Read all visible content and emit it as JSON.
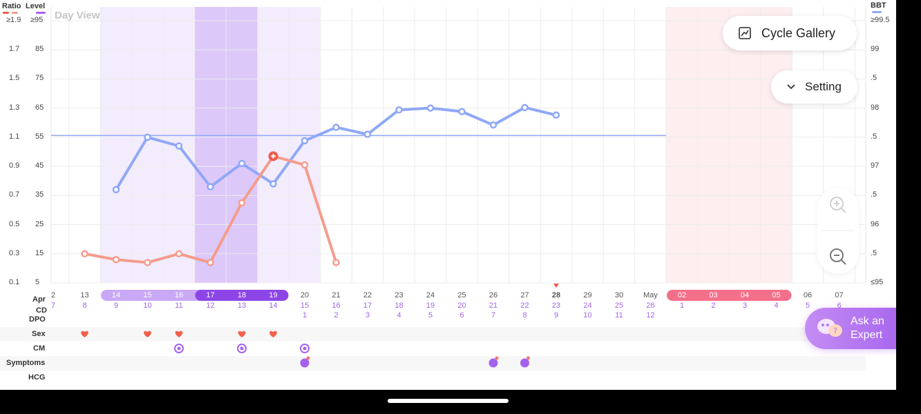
{
  "header": {
    "ratio_label": "Ratio",
    "level_label": "Level",
    "bbt_label": "BBT",
    "day_view": "Day View"
  },
  "colors": {
    "bbt": "#8fa8f8",
    "ratio": "#f49c8c",
    "ratio_peak": "#ef5a4a",
    "fertile_light": "#f3ecfd",
    "fertile_dark": "#ddc8fa",
    "period_band": "#fdeef0",
    "heart": "#f2604a",
    "purple": "#a461ee"
  },
  "buttons": {
    "cycle_gallery": "Cycle Gallery",
    "setting": "Setting",
    "ask_expert_line1": "Ask an",
    "ask_expert_line2": "Expert"
  },
  "rows": {
    "month": "Apr",
    "cd": "CD",
    "dpo": "DPO",
    "sex": "Sex",
    "cm": "CM",
    "symptoms": "Symptoms",
    "hcg": "HCG",
    "month2": "May"
  },
  "axis_left_ratio": [
    "≥1.9",
    "1.7",
    "1.5",
    "1.3",
    "1.1",
    "0.9",
    "0.7",
    "0.5",
    "0.3",
    "0.1"
  ],
  "axis_left_level": [
    "≥95",
    "85",
    "75",
    "65",
    "55",
    "45",
    "35",
    "25",
    "15",
    "5"
  ],
  "axis_right_bbt": [
    "≥99.5",
    "99",
    ".5",
    "98",
    ".5",
    "97",
    ".5",
    "96",
    ".5",
    "≤95"
  ],
  "days": [
    {
      "date": "2",
      "cd": "7",
      "dpo": ""
    },
    {
      "date": "13",
      "cd": "8",
      "dpo": ""
    },
    {
      "date": "14",
      "cd": "9",
      "dpo": ""
    },
    {
      "date": "15",
      "cd": "10",
      "dpo": ""
    },
    {
      "date": "16",
      "cd": "11",
      "dpo": ""
    },
    {
      "date": "17",
      "cd": "12",
      "dpo": ""
    },
    {
      "date": "18",
      "cd": "13",
      "dpo": ""
    },
    {
      "date": "19",
      "cd": "14",
      "dpo": ""
    },
    {
      "date": "20",
      "cd": "15",
      "dpo": "1"
    },
    {
      "date": "21",
      "cd": "16",
      "dpo": "2"
    },
    {
      "date": "22",
      "cd": "17",
      "dpo": "3"
    },
    {
      "date": "23",
      "cd": "18",
      "dpo": "4"
    },
    {
      "date": "24",
      "cd": "19",
      "dpo": "5"
    },
    {
      "date": "25",
      "cd": "20",
      "dpo": "6"
    },
    {
      "date": "26",
      "cd": "21",
      "dpo": "7"
    },
    {
      "date": "27",
      "cd": "22",
      "dpo": "8"
    },
    {
      "date": "28",
      "cd": "23",
      "dpo": "9"
    },
    {
      "date": "29",
      "cd": "24",
      "dpo": "10"
    },
    {
      "date": "30",
      "cd": "25",
      "dpo": "11"
    },
    {
      "date": "May",
      "cd": "26",
      "dpo": "12"
    },
    {
      "date": "02",
      "cd": "1",
      "dpo": ""
    },
    {
      "date": "03",
      "cd": "2",
      "dpo": ""
    },
    {
      "date": "04",
      "cd": "3",
      "dpo": ""
    },
    {
      "date": "05",
      "cd": "4",
      "dpo": ""
    },
    {
      "date": "06",
      "cd": "5",
      "dpo": ""
    },
    {
      "date": "07",
      "cd": "6",
      "dpo": ""
    }
  ],
  "chart_data": {
    "type": "line",
    "series": [
      {
        "name": "BBT",
        "axis": "right",
        "ylim": [
          95,
          99.5
        ],
        "points": [
          {
            "day": 2,
            "value": 96.6
          },
          {
            "day": 3,
            "value": 97.5
          },
          {
            "day": 4,
            "value": 97.35
          },
          {
            "day": 5,
            "value": 96.65
          },
          {
            "day": 6,
            "value": 97.05
          },
          {
            "day": 7,
            "value": 96.7
          },
          {
            "day": 8,
            "value": 97.44
          },
          {
            "day": 9,
            "value": 97.67
          },
          {
            "day": 10,
            "value": 97.55
          },
          {
            "day": 11,
            "value": 97.97
          },
          {
            "day": 12,
            "value": 98.0
          },
          {
            "day": 13,
            "value": 97.94
          },
          {
            "day": 14,
            "value": 97.71
          },
          {
            "day": 15,
            "value": 98.01
          },
          {
            "day": 16,
            "value": 97.88
          }
        ],
        "coverline": 97.53
      },
      {
        "name": "Ratio",
        "axis": "left",
        "ylim": [
          0.1,
          1.9
        ],
        "points": [
          {
            "day": 1,
            "value": 0.3
          },
          {
            "day": 2,
            "value": 0.26
          },
          {
            "day": 3,
            "value": 0.24
          },
          {
            "day": 4,
            "value": 0.3
          },
          {
            "day": 5,
            "value": 0.24
          },
          {
            "day": 6,
            "value": 0.65
          },
          {
            "day": 7,
            "value": 0.97
          },
          {
            "day": 8,
            "value": 0.91
          },
          {
            "day": 9,
            "value": 0.24
          }
        ],
        "peak_day": 7
      }
    ]
  },
  "bands": {
    "fertile_light": [
      2,
      8
    ],
    "fertile_dark": [
      5,
      6
    ],
    "period": [
      20,
      23
    ]
  },
  "pills": {
    "fertile": [
      2,
      7
    ],
    "fertile_dark": [
      5,
      7
    ],
    "period": [
      20,
      23
    ]
  },
  "markers": {
    "sex_days": [
      1,
      3,
      4,
      6,
      7
    ],
    "cm_days": [
      4,
      6,
      8
    ],
    "symptom_days": [
      8,
      14,
      15
    ],
    "today_day": 16
  }
}
